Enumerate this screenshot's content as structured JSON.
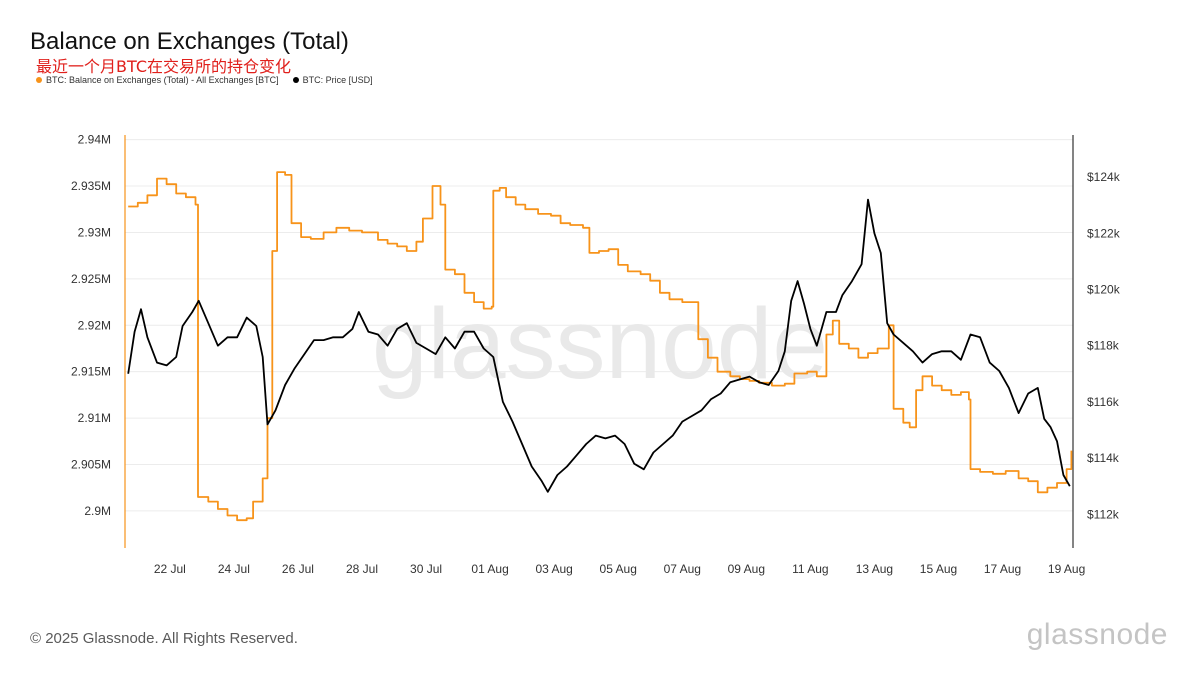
{
  "header": {
    "title": "Balance on Exchanges (Total)",
    "subtitle": "最近一个月BTC在交易所的持仓变化"
  },
  "legend": {
    "series1": "BTC: Balance on Exchanges (Total) - All Exchanges [BTC]",
    "series2": "BTC: Price [USD]"
  },
  "footer": {
    "copyright": "© 2025 Glassnode. All Rights Reserved."
  },
  "brand": {
    "name": "glassnode"
  },
  "colors": {
    "balance": "#f7931a",
    "price": "#000000",
    "grid": "#ececec"
  },
  "chart_data": {
    "type": "line",
    "title": "Balance on Exchanges (Total)",
    "x_ticks": [
      "22 Jul",
      "24 Jul",
      "26 Jul",
      "28 Jul",
      "30 Jul",
      "01 Aug",
      "03 Aug",
      "05 Aug",
      "07 Aug",
      "09 Aug",
      "11 Aug",
      "13 Aug",
      "15 Aug",
      "17 Aug",
      "19 Aug"
    ],
    "y_left_ticks": [
      "2.9M",
      "2.905M",
      "2.91M",
      "2.915M",
      "2.92M",
      "2.925M",
      "2.93M",
      "2.935M",
      "2.94M"
    ],
    "y_left_values": [
      2900000,
      2905000,
      2910000,
      2915000,
      2920000,
      2925000,
      2930000,
      2935000,
      2940000
    ],
    "y_right_ticks": [
      "$112k",
      "$114k",
      "$116k",
      "$118k",
      "$120k",
      "$122k",
      "$124k"
    ],
    "y_right_values": [
      112000,
      114000,
      116000,
      118000,
      120000,
      122000,
      124000
    ],
    "x_range": [
      20.6,
      50.2
    ],
    "y_left_range": [
      2896000,
      2940500
    ],
    "y_right_range": [
      110800,
      125500
    ],
    "grid": "horizontal",
    "series": [
      {
        "name": "BTC: Balance on Exchanges (Total) - All Exchanges [BTC]",
        "axis": "left",
        "points": [
          [
            20.7,
            2932800
          ],
          [
            21.0,
            2933200
          ],
          [
            21.3,
            2934000
          ],
          [
            21.6,
            2935800
          ],
          [
            21.9,
            2935200
          ],
          [
            22.2,
            2934200
          ],
          [
            22.5,
            2933800
          ],
          [
            22.8,
            2933000
          ],
          [
            22.88,
            2901500
          ],
          [
            23.2,
            2901000
          ],
          [
            23.5,
            2900200
          ],
          [
            23.8,
            2899500
          ],
          [
            24.1,
            2899000
          ],
          [
            24.4,
            2899200
          ],
          [
            24.6,
            2901000
          ],
          [
            24.9,
            2903500
          ],
          [
            25.05,
            2910000
          ],
          [
            25.2,
            2928000
          ],
          [
            25.35,
            2936500
          ],
          [
            25.6,
            2936200
          ],
          [
            25.8,
            2931000
          ],
          [
            26.1,
            2929500
          ],
          [
            26.4,
            2929300
          ],
          [
            26.8,
            2930000
          ],
          [
            27.2,
            2930500
          ],
          [
            27.6,
            2930200
          ],
          [
            28.0,
            2930000
          ],
          [
            28.3,
            2930000
          ],
          [
            28.5,
            2929200
          ],
          [
            28.8,
            2928800
          ],
          [
            29.1,
            2928500
          ],
          [
            29.4,
            2928000
          ],
          [
            29.7,
            2929000
          ],
          [
            29.9,
            2931500
          ],
          [
            30.2,
            2935000
          ],
          [
            30.45,
            2933000
          ],
          [
            30.6,
            2926000
          ],
          [
            30.9,
            2925500
          ],
          [
            31.2,
            2923500
          ],
          [
            31.5,
            2922500
          ],
          [
            31.8,
            2921800
          ],
          [
            32.05,
            2922000
          ],
          [
            32.1,
            2934500
          ],
          [
            32.3,
            2934800
          ],
          [
            32.5,
            2933800
          ],
          [
            32.8,
            2933000
          ],
          [
            33.1,
            2932500
          ],
          [
            33.5,
            2932000
          ],
          [
            33.9,
            2931800
          ],
          [
            34.2,
            2931000
          ],
          [
            34.5,
            2930800
          ],
          [
            34.9,
            2930500
          ],
          [
            35.1,
            2927800
          ],
          [
            35.4,
            2928000
          ],
          [
            35.7,
            2928200
          ],
          [
            36.0,
            2926500
          ],
          [
            36.3,
            2925800
          ],
          [
            36.7,
            2925500
          ],
          [
            37.0,
            2924800
          ],
          [
            37.3,
            2923500
          ],
          [
            37.6,
            2922800
          ],
          [
            38.0,
            2922500
          ],
          [
            38.3,
            2922500
          ],
          [
            38.5,
            2918500
          ],
          [
            38.8,
            2916500
          ],
          [
            39.1,
            2915000
          ],
          [
            39.5,
            2914500
          ],
          [
            39.8,
            2914200
          ],
          [
            40.1,
            2914000
          ],
          [
            40.4,
            2913800
          ],
          [
            40.8,
            2913500
          ],
          [
            41.2,
            2913700
          ],
          [
            41.5,
            2914800
          ],
          [
            41.9,
            2915000
          ],
          [
            42.2,
            2914500
          ],
          [
            42.5,
            2919000
          ],
          [
            42.7,
            2920500
          ],
          [
            42.9,
            2918000
          ],
          [
            43.2,
            2917500
          ],
          [
            43.5,
            2916500
          ],
          [
            43.8,
            2917000
          ],
          [
            44.1,
            2917500
          ],
          [
            44.3,
            2917500
          ],
          [
            44.45,
            2920000
          ],
          [
            44.6,
            2911000
          ],
          [
            44.9,
            2909500
          ],
          [
            45.1,
            2909000
          ],
          [
            45.3,
            2913000
          ],
          [
            45.5,
            2914500
          ],
          [
            45.8,
            2913500
          ],
          [
            46.1,
            2913000
          ],
          [
            46.4,
            2912500
          ],
          [
            46.7,
            2912800
          ],
          [
            46.95,
            2912000
          ],
          [
            47.0,
            2904500
          ],
          [
            47.3,
            2904200
          ],
          [
            47.7,
            2904000
          ],
          [
            48.1,
            2904300
          ],
          [
            48.5,
            2903500
          ],
          [
            48.8,
            2903200
          ],
          [
            49.1,
            2902000
          ],
          [
            49.4,
            2902500
          ],
          [
            49.7,
            2903000
          ],
          [
            50.0,
            2904500
          ],
          [
            50.15,
            2906500
          ]
        ]
      },
      {
        "name": "BTC: Price [USD]",
        "axis": "right",
        "points": [
          [
            20.7,
            117000
          ],
          [
            20.9,
            118500
          ],
          [
            21.1,
            119300
          ],
          [
            21.3,
            118300
          ],
          [
            21.6,
            117400
          ],
          [
            21.9,
            117300
          ],
          [
            22.2,
            117600
          ],
          [
            22.4,
            118700
          ],
          [
            22.7,
            119200
          ],
          [
            22.9,
            119600
          ],
          [
            23.2,
            118800
          ],
          [
            23.5,
            118000
          ],
          [
            23.8,
            118300
          ],
          [
            24.1,
            118300
          ],
          [
            24.4,
            119000
          ],
          [
            24.7,
            118700
          ],
          [
            24.9,
            117600
          ],
          [
            25.05,
            115200
          ],
          [
            25.3,
            115700
          ],
          [
            25.6,
            116600
          ],
          [
            25.9,
            117200
          ],
          [
            26.2,
            117700
          ],
          [
            26.5,
            118200
          ],
          [
            26.8,
            118200
          ],
          [
            27.1,
            118300
          ],
          [
            27.4,
            118300
          ],
          [
            27.7,
            118600
          ],
          [
            27.9,
            119200
          ],
          [
            28.2,
            118500
          ],
          [
            28.5,
            118400
          ],
          [
            28.8,
            118000
          ],
          [
            29.1,
            118600
          ],
          [
            29.4,
            118800
          ],
          [
            29.7,
            118100
          ],
          [
            30.0,
            117900
          ],
          [
            30.3,
            117700
          ],
          [
            30.6,
            118300
          ],
          [
            30.9,
            117900
          ],
          [
            31.2,
            118500
          ],
          [
            31.5,
            118500
          ],
          [
            31.8,
            117900
          ],
          [
            32.1,
            117600
          ],
          [
            32.4,
            116000
          ],
          [
            32.7,
            115300
          ],
          [
            33.0,
            114500
          ],
          [
            33.3,
            113700
          ],
          [
            33.6,
            113200
          ],
          [
            33.8,
            112800
          ],
          [
            34.1,
            113400
          ],
          [
            34.4,
            113700
          ],
          [
            34.7,
            114100
          ],
          [
            35.0,
            114500
          ],
          [
            35.3,
            114800
          ],
          [
            35.6,
            114700
          ],
          [
            35.9,
            114800
          ],
          [
            36.2,
            114500
          ],
          [
            36.5,
            113800
          ],
          [
            36.8,
            113600
          ],
          [
            37.1,
            114200
          ],
          [
            37.4,
            114500
          ],
          [
            37.7,
            114800
          ],
          [
            38.0,
            115300
          ],
          [
            38.3,
            115500
          ],
          [
            38.6,
            115700
          ],
          [
            38.9,
            116100
          ],
          [
            39.2,
            116300
          ],
          [
            39.5,
            116700
          ],
          [
            39.8,
            116800
          ],
          [
            40.1,
            116900
          ],
          [
            40.4,
            116700
          ],
          [
            40.7,
            116600
          ],
          [
            41.0,
            117100
          ],
          [
            41.2,
            117800
          ],
          [
            41.4,
            119600
          ],
          [
            41.6,
            120300
          ],
          [
            41.8,
            119500
          ],
          [
            42.0,
            118600
          ],
          [
            42.2,
            118000
          ],
          [
            42.5,
            119200
          ],
          [
            42.8,
            119200
          ],
          [
            43.0,
            119800
          ],
          [
            43.3,
            120300
          ],
          [
            43.6,
            120900
          ],
          [
            43.8,
            123200
          ],
          [
            44.0,
            122000
          ],
          [
            44.2,
            121300
          ],
          [
            44.4,
            118800
          ],
          [
            44.6,
            118400
          ],
          [
            44.9,
            118100
          ],
          [
            45.2,
            117800
          ],
          [
            45.5,
            117400
          ],
          [
            45.8,
            117700
          ],
          [
            46.1,
            117800
          ],
          [
            46.4,
            117800
          ],
          [
            46.7,
            117500
          ],
          [
            47.0,
            118400
          ],
          [
            47.3,
            118300
          ],
          [
            47.6,
            117400
          ],
          [
            47.9,
            117100
          ],
          [
            48.2,
            116500
          ],
          [
            48.5,
            115600
          ],
          [
            48.8,
            116300
          ],
          [
            49.1,
            116500
          ],
          [
            49.3,
            115400
          ],
          [
            49.5,
            115100
          ],
          [
            49.7,
            114600
          ],
          [
            49.9,
            113400
          ],
          [
            50.1,
            113000
          ]
        ]
      }
    ]
  }
}
